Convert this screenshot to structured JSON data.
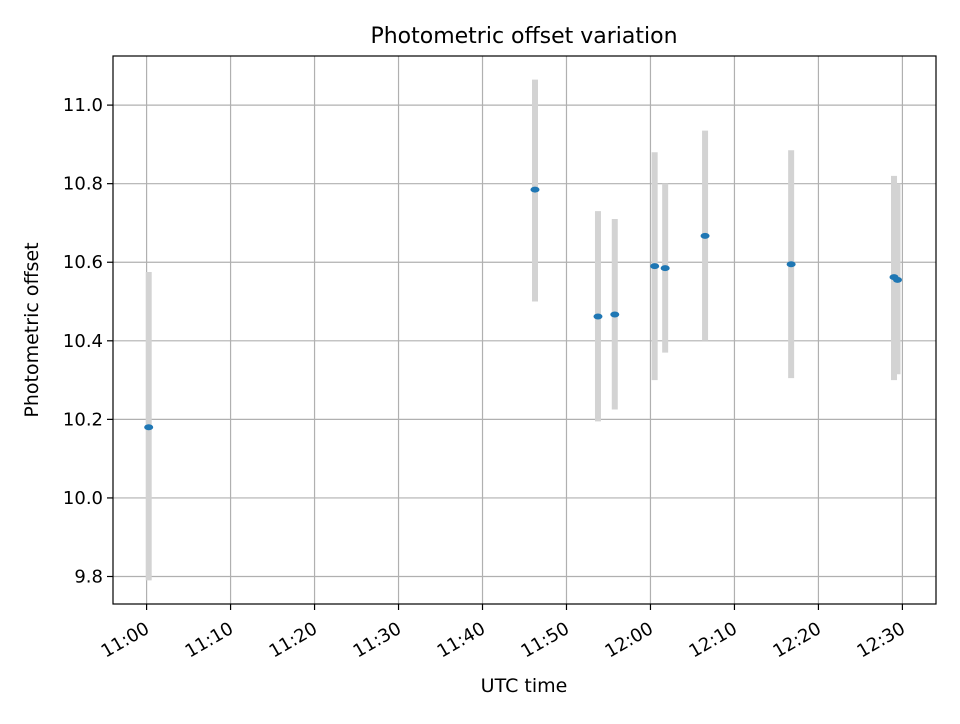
{
  "chart_data": {
    "type": "scatter",
    "title": "Photometric offset variation",
    "xlabel": "UTC time",
    "ylabel": "Photometric offset",
    "grid": true,
    "ylim": [
      9.73,
      11.125
    ],
    "xlim": [
      "10:56",
      "12:34"
    ],
    "x_ticks": [
      "11:00",
      "11:10",
      "11:20",
      "11:30",
      "11:40",
      "11:50",
      "12:00",
      "12:10",
      "12:20",
      "12:30"
    ],
    "y_ticks": [
      "9.8",
      "10.0",
      "10.2",
      "10.4",
      "10.6",
      "10.8",
      "11.0"
    ],
    "points": [
      {
        "x": "11:00:15",
        "y": 10.18,
        "err_low": 9.79,
        "err_high": 10.575
      },
      {
        "x": "11:46:15",
        "y": 10.785,
        "err_low": 10.5,
        "err_high": 11.065
      },
      {
        "x": "11:53:45",
        "y": 10.462,
        "err_low": 10.195,
        "err_high": 10.73
      },
      {
        "x": "11:55:45",
        "y": 10.467,
        "err_low": 10.225,
        "err_high": 10.71
      },
      {
        "x": "12:00:30",
        "y": 10.59,
        "err_low": 10.3,
        "err_high": 10.88
      },
      {
        "x": "12:01:45",
        "y": 10.585,
        "err_low": 10.37,
        "err_high": 10.8
      },
      {
        "x": "12:06:30",
        "y": 10.667,
        "err_low": 10.4,
        "err_high": 10.935
      },
      {
        "x": "12:16:45",
        "y": 10.595,
        "err_low": 10.305,
        "err_high": 10.885
      },
      {
        "x": "12:29:00",
        "y": 10.562,
        "err_low": 10.3,
        "err_high": 10.82
      },
      {
        "x": "12:29:25",
        "y": 10.555,
        "err_low": 10.315,
        "err_high": 10.8
      }
    ],
    "marker_color": "#1f77b4",
    "errorbar_color": "#d3d3d3"
  }
}
